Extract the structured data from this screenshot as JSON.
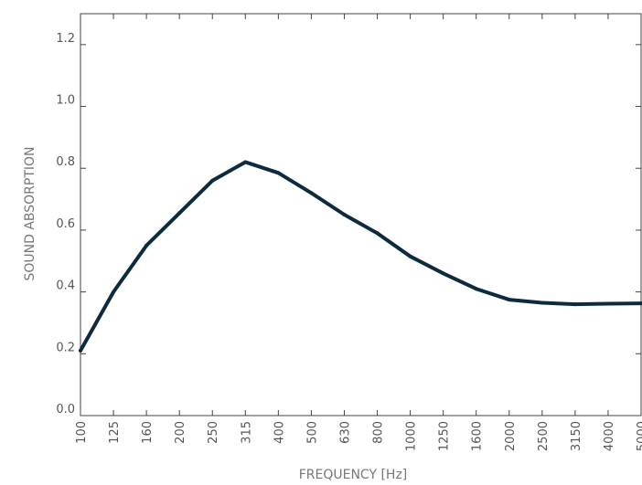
{
  "chart_data": {
    "type": "line",
    "title": "",
    "xlabel": "FREQUENCY [Hz]",
    "ylabel": "SOUND ABSORPTION",
    "categories": [
      "100",
      "125",
      "160",
      "200",
      "250",
      "315",
      "400",
      "500",
      "630",
      "800",
      "1000",
      "1250",
      "1600",
      "2000",
      "2500",
      "3150",
      "4000",
      "5000"
    ],
    "series": [
      {
        "values": [
          0.21,
          0.4,
          0.55,
          0.655,
          0.76,
          0.82,
          0.785,
          0.72,
          0.65,
          0.59,
          0.515,
          0.46,
          0.41,
          0.375,
          0.365,
          0.36,
          0.362,
          0.363
        ],
        "color": "#0d2b3e"
      }
    ],
    "ylim": [
      0.0,
      1.3
    ],
    "yticks": [
      0.0,
      0.2,
      0.4,
      0.6,
      0.8,
      1.0,
      1.2
    ],
    "ytick_labels": [
      "0.0",
      "0.2",
      "0.4",
      "0.6",
      "0.8",
      "1.0",
      "1.2"
    ],
    "grid": false,
    "legend": "none",
    "colors": {
      "line": "#0d2b3e",
      "frame": "#444444",
      "tick_text": "#555555",
      "axis_text": "#777777"
    }
  }
}
